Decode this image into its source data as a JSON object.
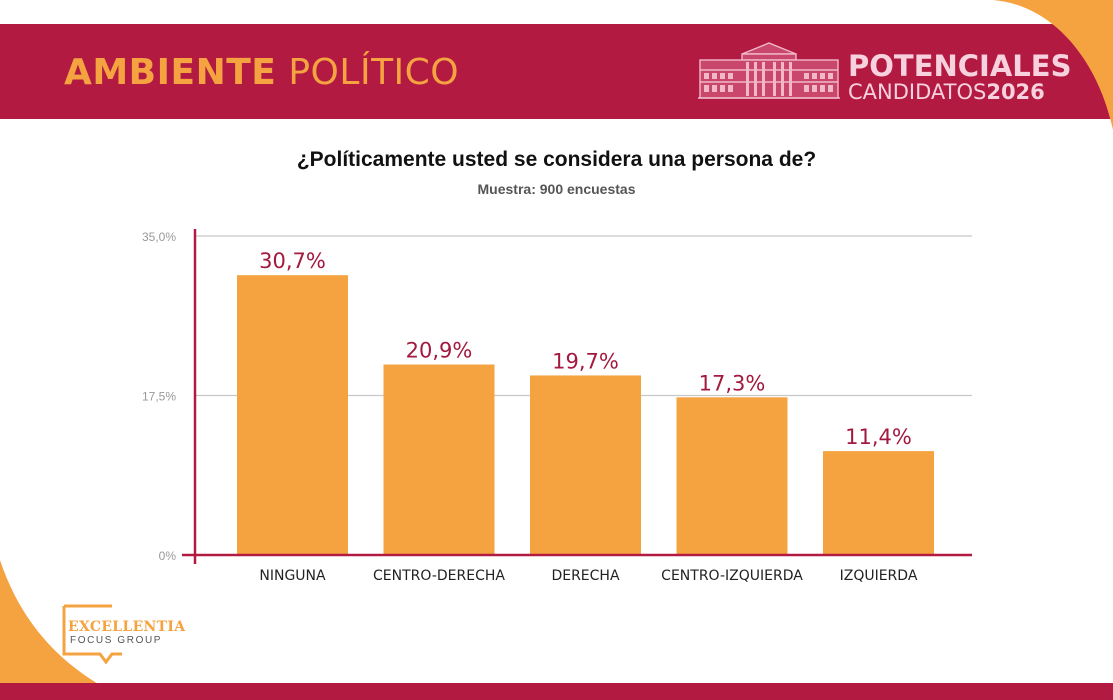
{
  "header": {
    "title_bold": "AMBIENTE",
    "title_light": "POLÍTICO",
    "brand_line1": "POTENCIALES",
    "brand_line2_light": "CANDIDATOS",
    "brand_line2_bold": "2026"
  },
  "footer": {
    "logo_line1": "EXCELLENTIA",
    "logo_line2": "FOCUS GROUP"
  },
  "colors": {
    "brand_red": "#b31a42",
    "accent_orange": "#f4a340",
    "bar": "#f4a340",
    "data_label": "#a3193f"
  },
  "chart_data": {
    "type": "bar",
    "title": "¿Políticamente usted se considera una persona de?",
    "subtitle": "Muestra: 900 encuestas",
    "categories": [
      "NINGUNA",
      "CENTRO-DERECHA",
      "DERECHA",
      "CENTRO-IZQUIERDA",
      "IZQUIERDA"
    ],
    "values": [
      30.7,
      20.9,
      19.7,
      17.3,
      11.4
    ],
    "data_labels": [
      "30,7%",
      "20,9%",
      "19,7%",
      "17,3%",
      "11,4%"
    ],
    "ylim": [
      0,
      35
    ],
    "yticks": [
      0,
      17.5,
      35
    ],
    "ytick_labels": [
      "0%",
      "17,5%",
      "35,0%"
    ],
    "grid": true,
    "xlabel": "",
    "ylabel": ""
  }
}
